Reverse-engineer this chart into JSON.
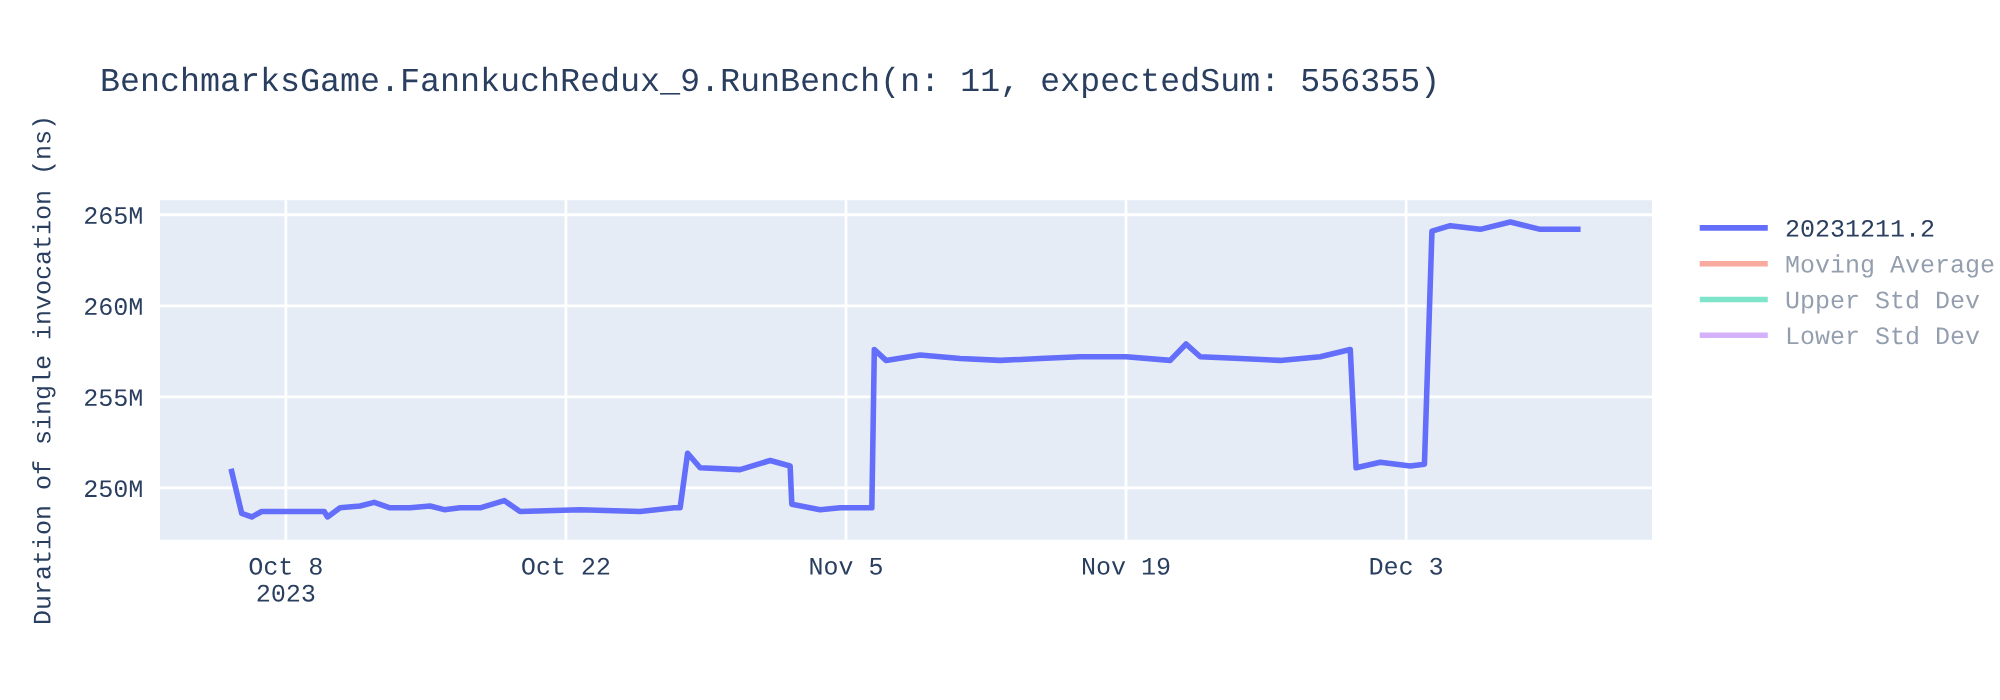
{
  "chart_data": {
    "type": "line",
    "title": "BenchmarksGame.FannkuchRedux_9.RunBench(n: 11, expectedSum: 556355)",
    "ylabel": "Duration of single invocation (ns)",
    "xlim": [
      "2023-10-01T17:00",
      "2023-12-15T07:00"
    ],
    "ylim": [
      247.15,
      265.8
    ],
    "xticks": [
      {
        "value": "2023-10-08",
        "label": "Oct 8\n2023"
      },
      {
        "value": "2023-10-22",
        "label": "Oct 22"
      },
      {
        "value": "2023-11-05",
        "label": "Nov 5"
      },
      {
        "value": "2023-11-19",
        "label": "Nov 19"
      },
      {
        "value": "2023-12-03",
        "label": "Dec 3"
      }
    ],
    "yticks": [
      {
        "value": 250,
        "label": "250M"
      },
      {
        "value": 255,
        "label": "255M"
      },
      {
        "value": 260,
        "label": "260M"
      },
      {
        "value": 265,
        "label": "265M"
      }
    ],
    "grid": true,
    "legend": "top right",
    "marker": "none",
    "line_style": "solid",
    "series": [
      {
        "name": "20231211.2",
        "color": "#636efa",
        "x": [
          "2023-10-05T07:00",
          "2023-10-05T19:00",
          "2023-10-06T07:00",
          "2023-10-06T19:00",
          "2023-10-09T22:00",
          "2023-10-10T02:00",
          "2023-10-10T17:00",
          "2023-10-11T17:00",
          "2023-10-12T10:00",
          "2023-10-13T05:00",
          "2023-10-14T05:00",
          "2023-10-15T05:00",
          "2023-10-15T22:00",
          "2023-10-16T17:00",
          "2023-10-17T17:00",
          "2023-10-18T22:00",
          "2023-10-19T17:00",
          "2023-10-22T17:00",
          "2023-10-25T17:00",
          "2023-10-27T10:00",
          "2023-10-27T17:00",
          "2023-10-28T02:00",
          "2023-10-28T17:00",
          "2023-10-30T17:00",
          "2023-11-01T05:00",
          "2023-11-02T05:00",
          "2023-11-02T07:00",
          "2023-11-03T17:00",
          "2023-11-04T17:00",
          "2023-11-06T07:00",
          "2023-11-06T10:00",
          "2023-11-07T00:00",
          "2023-11-08T17:00",
          "2023-11-10T17:00",
          "2023-11-12T17:00",
          "2023-11-14T17:00",
          "2023-11-16T17:00",
          "2023-11-19T00:00",
          "2023-11-21T05:00",
          "2023-11-22T00:00",
          "2023-11-22T17:00",
          "2023-11-24T17:00",
          "2023-11-26T17:00",
          "2023-11-28T17:00",
          "2023-11-30T05:00",
          "2023-11-30T12:00",
          "2023-12-01T17:00",
          "2023-12-03T05:00",
          "2023-12-03T22:00",
          "2023-12-04T07:00",
          "2023-12-05T05:00",
          "2023-12-06T17:00",
          "2023-12-08T05:00",
          "2023-12-09T17:00",
          "2023-12-11T14:00"
        ],
        "values": [
          250.9,
          248.6,
          248.4,
          248.7,
          248.7,
          248.4,
          248.9,
          249.0,
          249.2,
          248.9,
          248.9,
          249.0,
          248.8,
          248.9,
          248.9,
          249.3,
          248.7,
          248.8,
          248.7,
          248.9,
          248.9,
          251.9,
          251.1,
          251.0,
          251.5,
          251.2,
          249.1,
          248.8,
          248.9,
          248.9,
          257.6,
          257.0,
          257.3,
          257.1,
          257.0,
          257.1,
          257.2,
          257.2,
          257.0,
          257.9,
          257.2,
          257.1,
          257.0,
          257.2,
          257.6,
          251.1,
          251.4,
          251.2,
          251.3,
          264.1,
          264.4,
          264.2,
          264.6,
          264.2,
          264.2
        ]
      },
      {
        "name": "Moving Average",
        "color": "#ef553b"
      },
      {
        "name": "Upper Std Dev",
        "color": "#00cc96"
      },
      {
        "name": "Lower Std Dev",
        "color": "#ab63fa"
      }
    ]
  }
}
